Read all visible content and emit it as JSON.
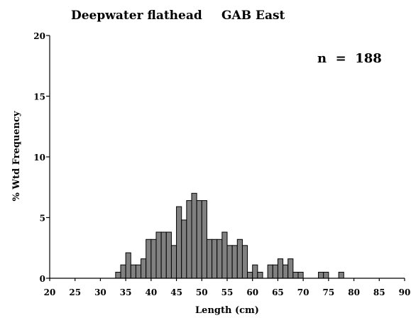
{
  "chart_data": {
    "type": "bar",
    "title": "Deepwater flathead",
    "subtitle": "GAB East",
    "annotation": "n  =  188",
    "xlabel": "Length (cm)",
    "ylabel": "% Wtd Frequency",
    "xlim": [
      20,
      90
    ],
    "ylim": [
      0,
      20
    ],
    "x_ticks": [
      "20",
      "25",
      "30",
      "35",
      "40",
      "45",
      "50",
      "55",
      "60",
      "65",
      "70",
      "75",
      "80",
      "85",
      "90"
    ],
    "x_tick_values": [
      20,
      25,
      30,
      35,
      40,
      45,
      50,
      55,
      60,
      65,
      70,
      75,
      80,
      85,
      90
    ],
    "y_ticks": [
      "0",
      "5",
      "10",
      "15",
      "20"
    ],
    "y_tick_values": [
      0,
      5,
      10,
      15,
      20
    ],
    "bin_width": 1,
    "bars": [
      {
        "x": 33,
        "y": 0.5
      },
      {
        "x": 34,
        "y": 1.1
      },
      {
        "x": 35,
        "y": 2.1
      },
      {
        "x": 36,
        "y": 1.1
      },
      {
        "x": 37,
        "y": 1.1
      },
      {
        "x": 38,
        "y": 1.6
      },
      {
        "x": 39,
        "y": 3.2
      },
      {
        "x": 40,
        "y": 3.2
      },
      {
        "x": 41,
        "y": 3.8
      },
      {
        "x": 42,
        "y": 3.8
      },
      {
        "x": 43,
        "y": 3.8
      },
      {
        "x": 44,
        "y": 2.7
      },
      {
        "x": 45,
        "y": 5.9
      },
      {
        "x": 46,
        "y": 4.8
      },
      {
        "x": 47,
        "y": 6.4
      },
      {
        "x": 48,
        "y": 7.0
      },
      {
        "x": 49,
        "y": 6.4
      },
      {
        "x": 50,
        "y": 6.4
      },
      {
        "x": 51,
        "y": 3.2
      },
      {
        "x": 52,
        "y": 3.2
      },
      {
        "x": 53,
        "y": 3.2
      },
      {
        "x": 54,
        "y": 3.8
      },
      {
        "x": 55,
        "y": 2.7
      },
      {
        "x": 56,
        "y": 2.7
      },
      {
        "x": 57,
        "y": 3.2
      },
      {
        "x": 58,
        "y": 2.7
      },
      {
        "x": 59,
        "y": 0.5
      },
      {
        "x": 60,
        "y": 1.1
      },
      {
        "x": 61,
        "y": 0.5
      },
      {
        "x": 63,
        "y": 1.1
      },
      {
        "x": 64,
        "y": 1.1
      },
      {
        "x": 65,
        "y": 1.6
      },
      {
        "x": 66,
        "y": 1.1
      },
      {
        "x": 67,
        "y": 1.6
      },
      {
        "x": 68,
        "y": 0.5
      },
      {
        "x": 69,
        "y": 0.5
      },
      {
        "x": 73,
        "y": 0.5
      },
      {
        "x": 74,
        "y": 0.5
      },
      {
        "x": 77,
        "y": 0.5
      }
    ],
    "grid": false,
    "legend": "none"
  }
}
